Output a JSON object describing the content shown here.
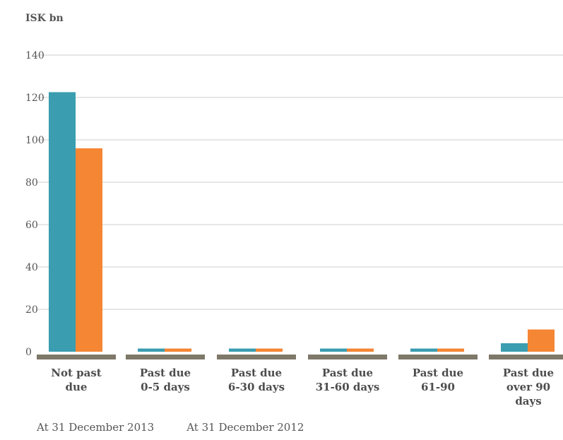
{
  "chart_data": {
    "type": "bar",
    "ylabel": "ISK bn",
    "ylim": [
      0,
      140
    ],
    "yticks": [
      0,
      20,
      40,
      60,
      80,
      100,
      120,
      140
    ],
    "grid": true,
    "categories": [
      [
        "Not past",
        "due"
      ],
      [
        "Past due",
        "0-5 days"
      ],
      [
        "Past due",
        "6-30 days"
      ],
      [
        "Past due",
        "31-60 days"
      ],
      [
        "Past due",
        "61-90"
      ],
      [
        "Past due",
        "over 90",
        "days"
      ]
    ],
    "series": [
      {
        "name": "At 31 December 2013",
        "color": "#3a9db0",
        "values": [
          122.5,
          1.5,
          1.5,
          1.5,
          1.5,
          4
        ]
      },
      {
        "name": "At 31 December 2012",
        "color": "#f58634",
        "values": [
          96,
          1.5,
          1.5,
          1.5,
          1.5,
          10.5
        ]
      }
    ],
    "legend_position": "bottom-left"
  }
}
